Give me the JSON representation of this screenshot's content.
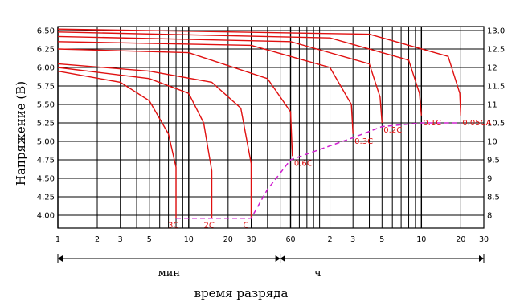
{
  "chart_data": {
    "type": "line",
    "title": "",
    "ylabel": "Напряжение (В)",
    "xlabel": "время разряда",
    "x_scale": "log",
    "x_units": [
      "мин",
      "ч"
    ],
    "x_ticks_minutes": [
      1,
      2,
      3,
      5,
      10,
      20,
      30,
      60,
      120,
      180,
      300,
      600,
      1200,
      1800
    ],
    "x_tick_labels": [
      "1",
      "2",
      "3",
      "5",
      "10",
      "20",
      "30",
      "60",
      "2",
      "3",
      "5",
      "10",
      "20",
      "30"
    ],
    "y_left_ticks": [
      "6.50",
      "6.25",
      "6.00",
      "5.75",
      "5.50",
      "5.25",
      "5.00",
      "4.75",
      "4.50",
      "4.25",
      "4.00"
    ],
    "y_right_ticks": [
      "13.0",
      "12.5",
      "12",
      "11.5",
      "11",
      "10.5",
      "10",
      "9.5",
      "9",
      "8.5",
      "8"
    ],
    "ylim": [
      3.85,
      6.6
    ],
    "grid": true,
    "segments": [
      {
        "label": "мин",
        "from": 1,
        "to": 50
      },
      {
        "label": "ч",
        "from": 50,
        "to": 1800
      }
    ],
    "series": [
      {
        "name": "3C",
        "x": [
          1,
          3,
          5,
          7,
          8,
          8
        ],
        "y": [
          5.95,
          5.8,
          5.55,
          5.1,
          4.65,
          3.96
        ]
      },
      {
        "name": "2C",
        "x": [
          1,
          5,
          10,
          13,
          15,
          15
        ],
        "y": [
          6.0,
          5.85,
          5.65,
          5.25,
          4.6,
          3.96
        ]
      },
      {
        "name": "C",
        "x": [
          1,
          5,
          15,
          25,
          30,
          30
        ],
        "y": [
          6.05,
          5.95,
          5.8,
          5.45,
          4.7,
          3.96
        ]
      },
      {
        "name": "0.6C",
        "x": [
          1,
          10,
          40,
          60,
          62
        ],
        "y": [
          6.25,
          6.2,
          5.85,
          5.4,
          4.8
        ]
      },
      {
        "name": "0.3C",
        "x": [
          1,
          30,
          120,
          175,
          180
        ],
        "y": [
          6.35,
          6.3,
          6.0,
          5.5,
          5.1
        ]
      },
      {
        "name": "0.2C",
        "x": [
          1,
          60,
          240,
          290,
          300
        ],
        "y": [
          6.42,
          6.35,
          6.05,
          5.6,
          5.25
        ]
      },
      {
        "name": "0.1C",
        "x": [
          1,
          120,
          480,
          580,
          600
        ],
        "y": [
          6.48,
          6.4,
          6.1,
          5.65,
          5.35
        ]
      },
      {
        "name": "0.05CA",
        "x": [
          1,
          240,
          960,
          1180,
          1200
        ],
        "y": [
          6.52,
          6.45,
          6.15,
          5.65,
          5.35
        ]
      }
    ],
    "cutoff_line": {
      "style": "dashed",
      "color": "#d020d0",
      "x": [
        8,
        30,
        40,
        60,
        180,
        300,
        600,
        1200
      ],
      "y": [
        3.96,
        3.96,
        4.35,
        4.75,
        5.05,
        5.2,
        5.25,
        5.25
      ]
    },
    "colors": {
      "curve": "#e01010",
      "cutoff": "#d020d0",
      "grid": "#000000"
    }
  }
}
